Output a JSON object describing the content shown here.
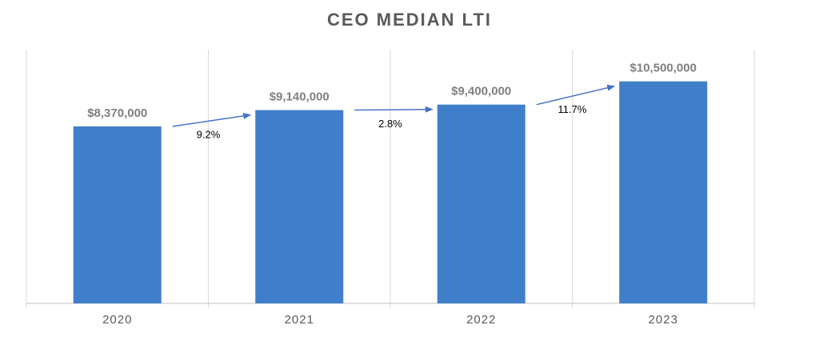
{
  "colors": {
    "bar": "#3f7fc9",
    "arrow": "#4472c4"
  },
  "chart_data": {
    "type": "bar",
    "title": "CEO MEDIAN LTI",
    "categories": [
      "2020",
      "2021",
      "2022",
      "2023"
    ],
    "values": [
      8370000,
      9140000,
      9400000,
      10500000
    ],
    "data_labels": [
      "$8,370,000",
      "$9,140,000",
      "$9,400,000",
      "$10,500,000"
    ],
    "changes": [
      "9.2%",
      "2.8%",
      "11.7%"
    ],
    "ylim": [
      0,
      12000000
    ],
    "grid": "vertical",
    "legend": "none"
  }
}
